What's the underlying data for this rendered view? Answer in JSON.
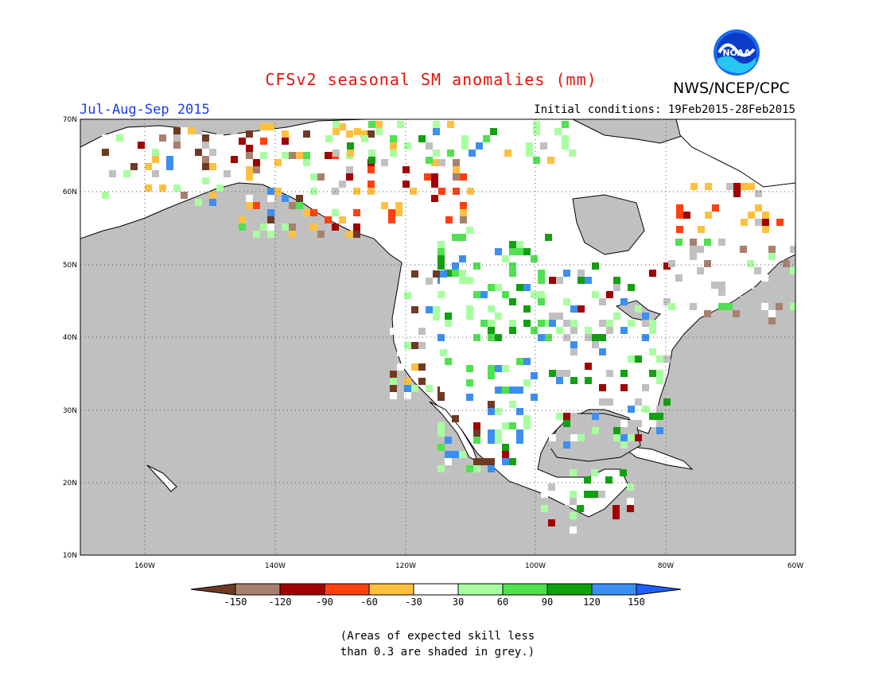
{
  "header": {
    "title": "CFSv2 seasonal SM anomalies (mm)",
    "organization": "NWS/NCEP/CPC",
    "season": "Jul-Aug-Sep 2015",
    "initial_conditions": "Initial conditions: 19Feb2015-28Feb2015",
    "logo_text": "NOAA"
  },
  "map": {
    "lat_labels": [
      "70N",
      "60N",
      "50N",
      "40N",
      "30N",
      "20N",
      "10N"
    ],
    "lon_labels": [
      "160W",
      "140W",
      "120W",
      "100W",
      "80W",
      "60W"
    ],
    "grey_color": "#c0c0c0"
  },
  "legend": {
    "tick_labels": [
      "-150",
      "-120",
      "-90",
      "-60",
      "-30",
      "30",
      "60",
      "90",
      "120",
      "150"
    ],
    "colors": [
      "#6e3a24",
      "#a88070",
      "#a00000",
      "#ff4010",
      "#ffc040",
      "#ffffff",
      "#a8ffa0",
      "#50e050",
      "#10a010",
      "#3c8ff0",
      "#2060ff"
    ]
  },
  "note": {
    "line1": "(Areas of expected skill less",
    "line2": "than 0.3 are shaded in grey.)"
  }
}
